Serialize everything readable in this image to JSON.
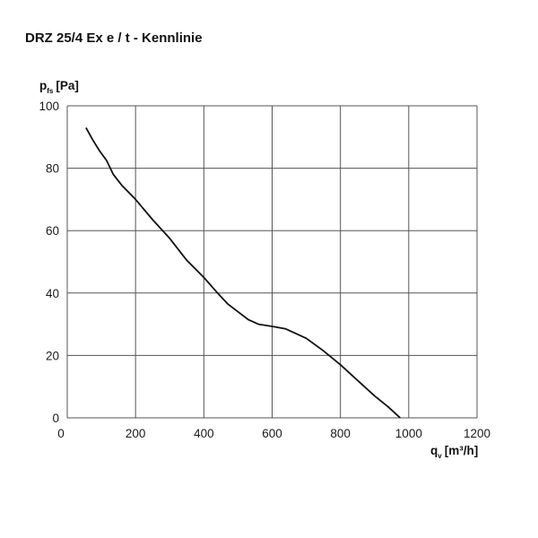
{
  "chart_data": {
    "type": "line",
    "title": "DRZ 25/4 Ex e / t - Kennlinie",
    "ylabel": {
      "main": "p",
      "sub": "fs",
      "unit": "[Pa]"
    },
    "xlabel": {
      "main": "q",
      "sub": "v",
      "unit": "[m³/h]"
    },
    "xlim": [
      0,
      1200
    ],
    "ylim": [
      0,
      100
    ],
    "xticks": [
      0,
      200,
      400,
      600,
      800,
      1000,
      1200
    ],
    "yticks": [
      0,
      20,
      40,
      60,
      80,
      100
    ],
    "grid": true,
    "series": [
      {
        "x": [
          55,
          75,
          95,
          115,
          135,
          160,
          200,
          250,
          300,
          350,
          400,
          440,
          470,
          500,
          530,
          560,
          600,
          640,
          700,
          750,
          800,
          850,
          900,
          940,
          960,
          975
        ],
        "y": [
          93,
          89,
          85.5,
          82.5,
          78,
          74.5,
          70,
          63.5,
          57.5,
          50.5,
          45,
          40,
          36.5,
          34,
          31.5,
          30,
          29.3,
          28.5,
          25.5,
          21.5,
          17,
          12,
          7,
          3.5,
          1.5,
          0
        ]
      }
    ]
  }
}
